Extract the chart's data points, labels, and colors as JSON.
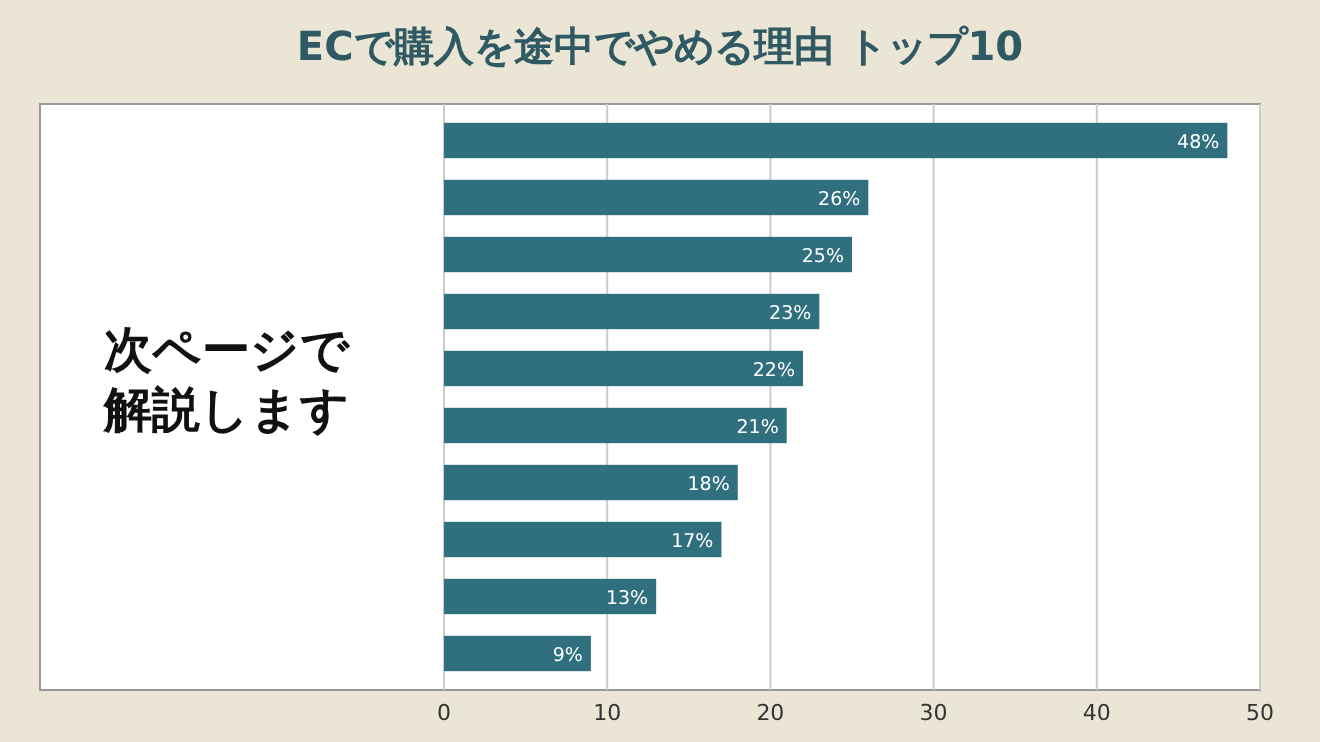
{
  "chart_data": {
    "type": "bar",
    "orientation": "horizontal",
    "title": "ECで購入を途中でやめる理由 トップ10",
    "annotations": [
      "次ページで解説します"
    ],
    "categories": [
      null,
      null,
      null,
      null,
      null,
      null,
      null,
      null,
      null,
      null
    ],
    "values": [
      48,
      26,
      25,
      23,
      22,
      21,
      18,
      17,
      13,
      9
    ],
    "value_labels": [
      "48%",
      "26%",
      "25%",
      "23%",
      "22%",
      "21%",
      "18%",
      "17%",
      "13%",
      "9%"
    ],
    "color": "#2f6f7e",
    "xlim": [
      0,
      50
    ],
    "xticks": [
      0,
      10,
      20,
      30,
      40,
      50
    ],
    "grid": "x"
  }
}
